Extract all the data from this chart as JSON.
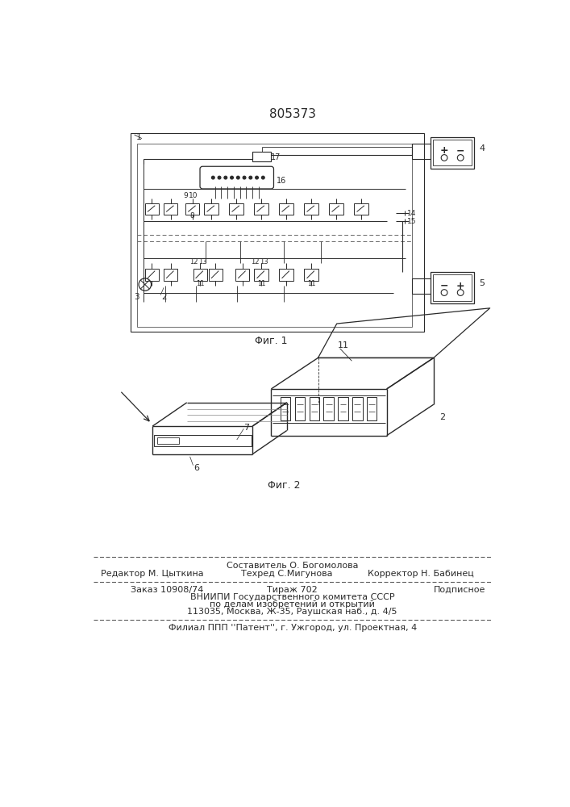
{
  "patent_number": "805373",
  "bg_color": "#ffffff",
  "line_color": "#2a2a2a",
  "fig1_caption": "Φиг. 1",
  "fig2_caption": "Φиг. 2",
  "footer": {
    "sestavitel": "Составитель О. Богомолова",
    "redaktor": "Редактор М. Цыткина",
    "tehred": "Техред С.Мигунова",
    "korrektor": "Корректор Н. Бабинец",
    "zakaz": "Заказ 10908/74",
    "tirazh": "Тираж 702",
    "podpisnoe": "Подписное",
    "vniipи": "ВНИИПИ Государственного комитета СССР",
    "podel": "по делам изобретений и открытий",
    "addr": "113035, Москва, Ж-35, Раушская наб., д. 4/5",
    "filial": "Филиал ППП ''Патент'', г. Ужгород, ул. Проектная, 4"
  }
}
